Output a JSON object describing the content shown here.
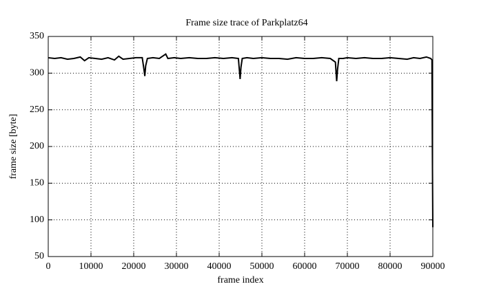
{
  "chart_data": {
    "type": "line",
    "title": "Frame size trace of Parkplatz64",
    "x_label": "frame index",
    "y_label": "frame size [byte]",
    "color": "#000000",
    "grid": true,
    "x": [
      0,
      1500,
      3000,
      4500,
      6000,
      7500,
      8500,
      9500,
      11000,
      12500,
      14000,
      15500,
      16500,
      17500,
      19000,
      20500,
      22000,
      22400,
      22600,
      22800,
      23200,
      24500,
      26000,
      27500,
      28000,
      29500,
      31000,
      33000,
      35000,
      37000,
      39000,
      41000,
      43000,
      44500,
      44900,
      45100,
      45400,
      46500,
      48000,
      50000,
      52000,
      54000,
      56000,
      58000,
      60000,
      62000,
      64000,
      66000,
      67200,
      67500,
      67700,
      68000,
      69000,
      70000,
      72000,
      74000,
      76000,
      78000,
      80000,
      82000,
      84000,
      85500,
      87000,
      88500,
      89500,
      89800,
      89900,
      90000
    ],
    "values": [
      321,
      320,
      321,
      319,
      320,
      322,
      317,
      321,
      320,
      319,
      321,
      318,
      323,
      319,
      320,
      321,
      321,
      305,
      296,
      310,
      320,
      321,
      320,
      326,
      320,
      321,
      320,
      321,
      320,
      320,
      321,
      320,
      321,
      320,
      292,
      308,
      320,
      321,
      320,
      321,
      320,
      320,
      319,
      321,
      320,
      320,
      321,
      320,
      315,
      289,
      305,
      320,
      320,
      321,
      320,
      321,
      320,
      320,
      321,
      320,
      319,
      321,
      320,
      322,
      320,
      318,
      190,
      90
    ],
    "xlim": [
      0,
      90000
    ],
    "ylim": [
      50,
      350
    ],
    "xticks": [
      0,
      10000,
      20000,
      30000,
      40000,
      50000,
      60000,
      70000,
      80000,
      90000
    ],
    "yticks": [
      50,
      100,
      150,
      200,
      250,
      300,
      350
    ]
  }
}
